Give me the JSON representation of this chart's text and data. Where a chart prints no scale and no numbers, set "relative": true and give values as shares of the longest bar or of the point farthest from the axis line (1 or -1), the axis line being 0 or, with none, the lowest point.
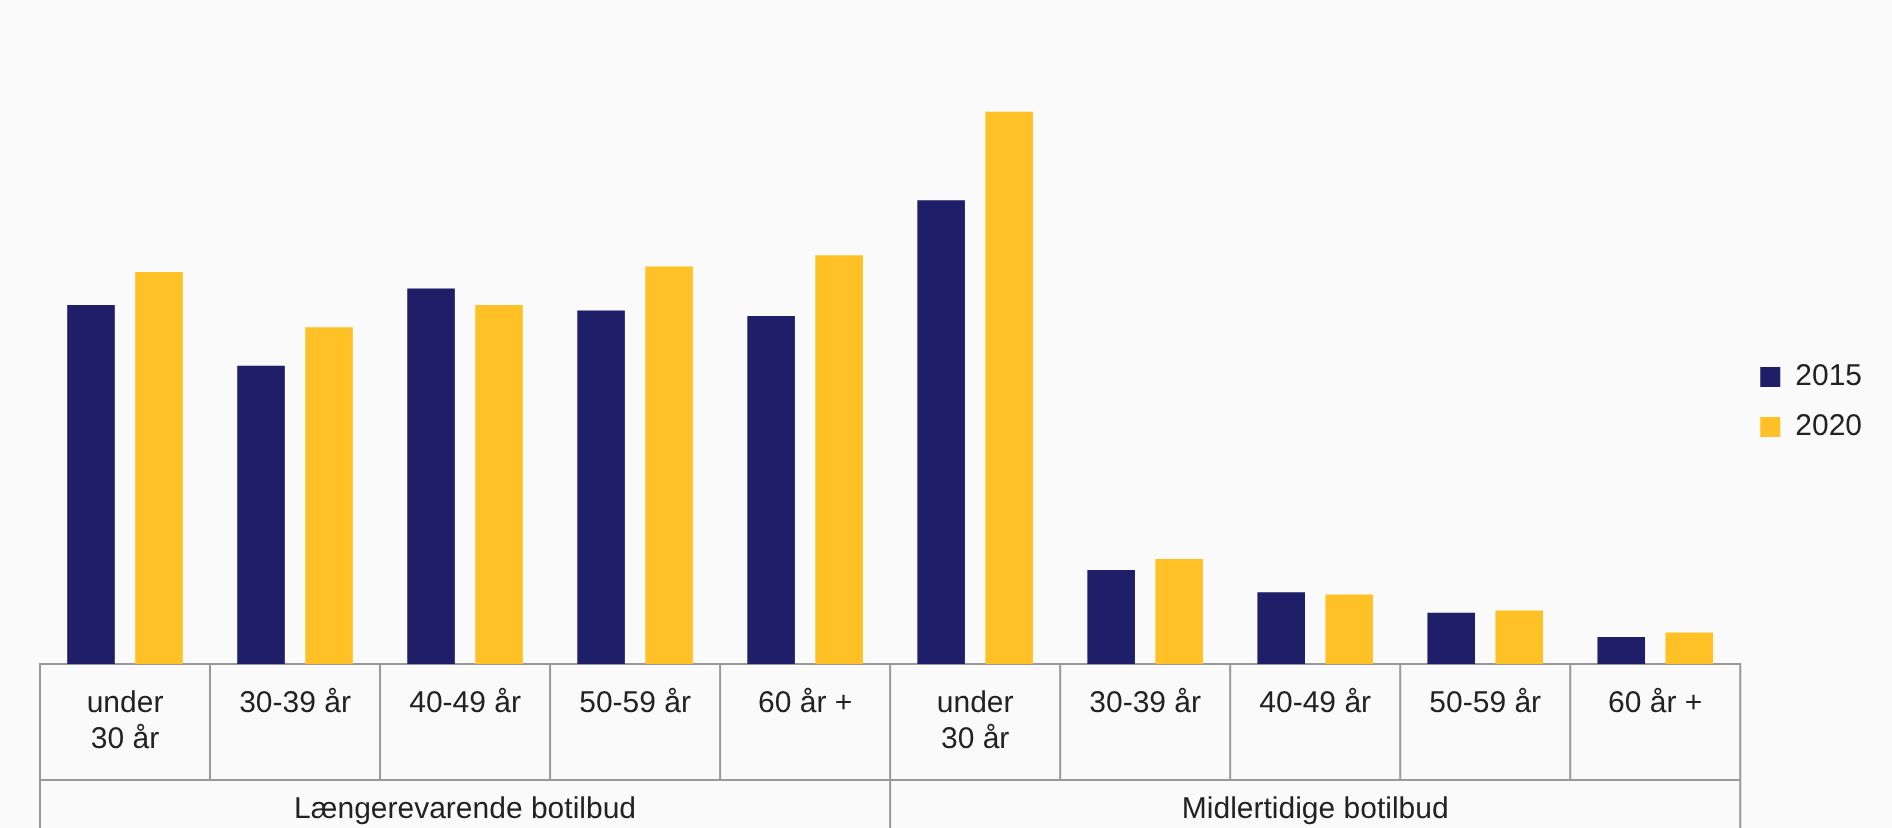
{
  "chart_data": {
    "type": "bar",
    "relative": true,
    "categories": [
      "under 30 år",
      "30-39 år",
      "40-49 år",
      "50-59 år",
      "60 år +",
      "under 30 år",
      "30-39 år",
      "40-49 år",
      "50-59 år",
      "60 år +"
    ],
    "series": [
      {
        "name": "2015",
        "color": "#1f1f69",
        "values": [
          0.65,
          0.54,
          0.68,
          0.64,
          0.63,
          0.84,
          0.17,
          0.13,
          0.093,
          0.049
        ]
      },
      {
        "name": "2020",
        "color": "#ffc125",
        "values": [
          0.71,
          0.61,
          0.65,
          0.72,
          0.74,
          1,
          0.19,
          0.126,
          0.097,
          0.057
        ]
      }
    ],
    "annotations": [
      "Længerevarende botilbud",
      "Midlertidige botilbud"
    ],
    "legend": "right"
  }
}
